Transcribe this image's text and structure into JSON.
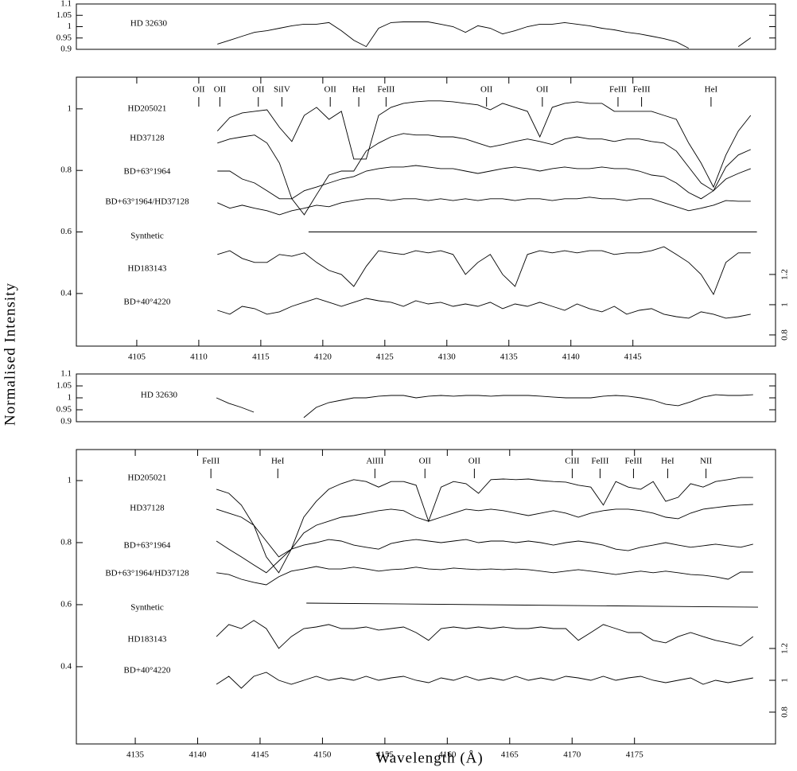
{
  "chart_data": [
    {
      "type": "line",
      "xlim": [
        4100.13,
        4156.5
      ],
      "ylim": [
        0.9,
        1.1
      ],
      "yticks": [
        0.9,
        0.95,
        1,
        1.05,
        1.1
      ],
      "x": [
        4111.5,
        4112.5,
        4113.5,
        4114.5,
        4115.5,
        4116.5,
        4117.5,
        4118.5,
        4119.5,
        4120.5,
        4121.5,
        4122.5,
        4123.5,
        4124.5,
        4125.5,
        4126.5,
        4127.5,
        4128.5,
        4129.5,
        4130.5,
        4131.5,
        4132.5,
        4133.5,
        4134.5,
        4135.5,
        4136.5,
        4137.5,
        4138.5,
        4139.5,
        4140.5,
        4141.5,
        4142.5,
        4143.5,
        4144.5,
        4145.5,
        4146.5,
        4147.5,
        4148.5,
        4149.5,
        4150.5,
        4151.5,
        4152.5,
        4153.5,
        4154.5
      ],
      "series": [
        {
          "name": "HD 32630",
          "color": "#000000",
          "values": [
            0.923,
            0.94,
            0.958,
            0.975,
            0.982,
            0.993,
            1.004,
            1.011,
            1.011,
            1.018,
            0.982,
            0.94,
            0.912,
            0.993,
            1.018,
            1.021,
            1.021,
            1.021,
            1.011,
            1.0,
            0.975,
            1.004,
            0.993,
            0.968,
            0.982,
            1.0,
            1.011,
            1.011,
            1.018,
            1.011,
            1.004,
            0.993,
            0.986,
            0.975,
            0.968,
            0.958,
            0.947,
            0.933,
            0.905,
            null,
            null,
            null,
            0.912,
            0.951
          ]
        }
      ]
    },
    {
      "type": "line",
      "y_label": "Normalised Intensity",
      "xlim": [
        4100.13,
        4156.5
      ],
      "ylim": [
        0.229,
        1.103
      ],
      "yticks": [
        0.4,
        0.6,
        0.8,
        1
      ],
      "y2lim": [
        0.726,
        2.505
      ],
      "y2ticks": [
        0.8,
        1,
        1.2
      ],
      "xticks": [
        4105,
        4110,
        4115,
        4120,
        4125,
        4130,
        4135,
        4140,
        4145
      ],
      "x": [
        4111.5,
        4112.5,
        4113.5,
        4114.5,
        4115.5,
        4116.5,
        4117.5,
        4118.5,
        4119.5,
        4120.5,
        4121.5,
        4122.5,
        4123.5,
        4124.5,
        4125.5,
        4126.5,
        4127.5,
        4128.5,
        4129.5,
        4130.5,
        4131.5,
        4132.5,
        4133.5,
        4134.5,
        4135.5,
        4136.5,
        4137.5,
        4138.5,
        4139.5,
        4140.5,
        4141.5,
        4142.5,
        4143.5,
        4144.5,
        4145.5,
        4146.5,
        4147.5,
        4148.5,
        4149.5,
        4150.5,
        4151.5,
        4152.5,
        4153.5,
        4154.5
      ],
      "series": [
        {
          "name": "HD205021",
          "color": "#000000",
          "values": [
            0.928,
            0.972,
            0.987,
            0.992,
            0.997,
            0.94,
            0.894,
            0.979,
            1.005,
            0.966,
            0.992,
            0.837,
            0.837,
            0.979,
            1.005,
            1.018,
            1.023,
            1.026,
            1.026,
            1.023,
            1.018,
            1.013,
            0.997,
            1.018,
            1.005,
            0.992,
            0.909,
            1.005,
            1.018,
            1.023,
            1.018,
            1.018,
            0.992,
            0.992,
            0.992,
            0.992,
            0.979,
            0.966,
            0.889,
            0.824,
            0.746,
            0.85,
            0.928,
            0.979
          ]
        },
        {
          "name": "HD37128",
          "color": "#000000",
          "values": [
            0.889,
            0.902,
            0.909,
            0.915,
            0.889,
            0.824,
            0.708,
            0.656,
            0.721,
            0.785,
            0.798,
            0.798,
            0.863,
            0.889,
            0.909,
            0.92,
            0.915,
            0.915,
            0.909,
            0.909,
            0.902,
            0.889,
            0.876,
            0.884,
            0.894,
            0.902,
            0.894,
            0.884,
            0.902,
            0.909,
            0.902,
            0.902,
            0.894,
            0.902,
            0.902,
            0.894,
            0.889,
            0.863,
            0.811,
            0.759,
            0.734,
            0.811,
            0.85,
            0.868
          ]
        },
        {
          "name": "BD+63°1964",
          "color": "#000000",
          "values": [
            0.798,
            0.798,
            0.772,
            0.759,
            0.734,
            0.708,
            0.708,
            0.734,
            0.746,
            0.759,
            0.772,
            0.78,
            0.798,
            0.806,
            0.811,
            0.811,
            0.816,
            0.811,
            0.806,
            0.806,
            0.798,
            0.79,
            0.798,
            0.806,
            0.811,
            0.806,
            0.798,
            0.806,
            0.811,
            0.806,
            0.806,
            0.811,
            0.806,
            0.806,
            0.798,
            0.785,
            0.78,
            0.759,
            0.728,
            0.708,
            0.734,
            0.772,
            0.79,
            0.806
          ]
        },
        {
          "name": "BD+63°1964/HD37128",
          "color": "#000000",
          "values": [
            0.695,
            0.677,
            0.687,
            0.677,
            0.669,
            0.656,
            0.669,
            0.677,
            0.687,
            0.682,
            0.695,
            0.702,
            0.708,
            0.708,
            0.702,
            0.708,
            0.708,
            0.702,
            0.708,
            0.702,
            0.708,
            0.702,
            0.708,
            0.708,
            0.702,
            0.708,
            0.708,
            0.702,
            0.708,
            0.708,
            0.713,
            0.708,
            0.708,
            0.702,
            0.708,
            0.708,
            0.695,
            0.682,
            0.669,
            0.677,
            0.687,
            0.702,
            0.7,
            0.7
          ]
        },
        {
          "name": "Synthetic",
          "color": "#000000",
          "x": [
            4118.85,
            4155.0
          ],
          "values": [
            0.6,
            0.6
          ]
        },
        {
          "name": "HD183143",
          "color": "#000000",
          "values": [
            0.527,
            0.539,
            0.514,
            0.501,
            0.501,
            0.527,
            0.521,
            0.532,
            0.501,
            0.475,
            0.462,
            0.423,
            0.488,
            0.539,
            0.532,
            0.527,
            0.539,
            0.532,
            0.539,
            0.527,
            0.462,
            0.501,
            0.527,
            0.462,
            0.423,
            0.527,
            0.539,
            0.532,
            0.539,
            0.532,
            0.539,
            0.539,
            0.527,
            0.532,
            0.532,
            0.539,
            0.552,
            0.527,
            0.501,
            0.462,
            0.397,
            0.501,
            0.532,
            0.532
          ]
        },
        {
          "name": "BD+40°4220",
          "color": "#000000",
          "axis": "y2",
          "values": [
            0.963,
            0.937,
            0.989,
            0.974,
            0.937,
            0.953,
            0.989,
            1.016,
            1.042,
            1.016,
            0.989,
            1.016,
            1.042,
            1.026,
            1.016,
            0.989,
            1.026,
            1.005,
            1.016,
            0.989,
            1.005,
            0.989,
            1.016,
            0.974,
            1.005,
            0.989,
            1.016,
            0.989,
            0.963,
            1.005,
            0.974,
            0.953,
            0.989,
            0.937,
            0.963,
            0.974,
            0.937,
            0.921,
            0.911,
            0.953,
            0.937,
            0.911,
            0.921,
            0.937
          ]
        }
      ],
      "annotations": [
        {
          "text": "OII",
          "x": 4110.0
        },
        {
          "text": "OII",
          "x": 4111.7
        },
        {
          "text": "OII",
          "x": 4114.8
        },
        {
          "text": "SiIV",
          "x": 4116.7
        },
        {
          "text": "OII",
          "x": 4120.6
        },
        {
          "text": "HeI",
          "x": 4122.9
        },
        {
          "text": "FeIII",
          "x": 4125.1
        },
        {
          "text": "OII",
          "x": 4133.2
        },
        {
          "text": "OII",
          "x": 4137.7
        },
        {
          "text": "FeIII",
          "x": 4143.8
        },
        {
          "text": "FeIII",
          "x": 4145.7
        },
        {
          "text": "HeI",
          "x": 4151.3
        }
      ]
    },
    {
      "type": "line",
      "xlim": [
        4130.28,
        4186.3
      ],
      "ylim": [
        0.9,
        1.1
      ],
      "yticks": [
        0.9,
        0.95,
        1,
        1.05,
        1.1
      ],
      "x": [
        4141.5,
        4142.5,
        4143.5,
        4144.5,
        4145.5,
        4146.5,
        4147.5,
        4148.5,
        4149.5,
        4150.5,
        4151.5,
        4152.5,
        4153.5,
        4154.5,
        4155.5,
        4156.5,
        4157.5,
        4158.5,
        4159.5,
        4160.5,
        4161.5,
        4162.5,
        4163.5,
        4164.5,
        4165.5,
        4166.5,
        4167.5,
        4168.5,
        4169.5,
        4170.5,
        4171.5,
        4172.5,
        4173.5,
        4174.5,
        4175.5,
        4176.5,
        4177.5,
        4178.5,
        4179.5,
        4180.5,
        4181.5,
        4182.5,
        4183.5,
        4184.5
      ],
      "series": [
        {
          "name": "HD 32630",
          "color": "#000000",
          "values": [
            1.0,
            0.977,
            0.96,
            0.94,
            null,
            null,
            null,
            0.917,
            0.96,
            0.98,
            0.99,
            1.0,
            1.0,
            1.007,
            1.01,
            1.01,
            1.0,
            1.007,
            1.01,
            1.007,
            1.01,
            1.01,
            1.007,
            1.01,
            1.01,
            1.01,
            1.007,
            1.003,
            1.0,
            1.0,
            1.0,
            1.007,
            1.01,
            1.007,
            1.0,
            0.99,
            0.973,
            0.967,
            0.983,
            1.003,
            1.013,
            1.01,
            1.01,
            1.013
          ]
        }
      ]
    },
    {
      "type": "line",
      "x_label": "Wavelength (Å)",
      "xlim": [
        4130.28,
        4186.3
      ],
      "ylim": [
        0.151,
        1.1
      ],
      "yticks": [
        0.4,
        0.6,
        0.8,
        1
      ],
      "y2lim": [
        0.6,
        2.45
      ],
      "y2ticks": [
        0.8,
        1,
        1.2
      ],
      "xticks": [
        4135,
        4140,
        4145,
        4150,
        4155,
        4160,
        4165,
        4170,
        4175
      ],
      "x": [
        4141.5,
        4142.5,
        4143.5,
        4144.5,
        4145.5,
        4146.5,
        4147.5,
        4148.5,
        4149.5,
        4150.5,
        4151.5,
        4152.5,
        4153.5,
        4154.5,
        4155.5,
        4156.5,
        4157.5,
        4158.5,
        4159.5,
        4160.5,
        4161.5,
        4162.5,
        4163.5,
        4164.5,
        4165.5,
        4166.5,
        4167.5,
        4168.5,
        4169.5,
        4170.5,
        4171.5,
        4172.5,
        4173.5,
        4174.5,
        4175.5,
        4176.5,
        4177.5,
        4178.5,
        4179.5,
        4180.5,
        4181.5,
        4182.5,
        4183.5,
        4184.5
      ],
      "series": [
        {
          "name": "HD205021",
          "color": "#000000",
          "values": [
            0.972,
            0.959,
            0.921,
            0.856,
            0.754,
            0.703,
            0.779,
            0.882,
            0.933,
            0.972,
            0.99,
            1.003,
            0.997,
            0.979,
            0.997,
            0.997,
            0.985,
            0.869,
            0.979,
            0.997,
            0.99,
            0.959,
            1.003,
            1.005,
            1.003,
            1.005,
            1.0,
            0.997,
            0.995,
            0.985,
            0.979,
            0.921,
            0.997,
            0.979,
            0.972,
            0.997,
            0.933,
            0.946,
            0.99,
            0.979,
            0.997,
            1.003,
            1.01,
            1.01
          ]
        },
        {
          "name": "HD37128",
          "color": "#000000",
          "values": [
            0.908,
            0.895,
            0.882,
            0.856,
            0.805,
            0.754,
            0.779,
            0.831,
            0.856,
            0.869,
            0.882,
            0.887,
            0.895,
            0.903,
            0.908,
            0.903,
            0.882,
            0.869,
            0.882,
            0.895,
            0.908,
            0.903,
            0.908,
            0.903,
            0.895,
            0.887,
            0.895,
            0.903,
            0.895,
            0.882,
            0.895,
            0.903,
            0.908,
            0.908,
            0.903,
            0.895,
            0.882,
            0.877,
            0.895,
            0.908,
            0.913,
            0.918,
            0.921,
            0.923
          ]
        },
        {
          "name": "BD+63°1964",
          "color": "#000000",
          "values": [
            0.805,
            0.779,
            0.754,
            0.728,
            0.703,
            0.741,
            0.779,
            0.792,
            0.8,
            0.81,
            0.805,
            0.792,
            0.785,
            0.779,
            0.797,
            0.805,
            0.81,
            0.805,
            0.8,
            0.805,
            0.81,
            0.8,
            0.805,
            0.805,
            0.8,
            0.805,
            0.8,
            0.792,
            0.8,
            0.805,
            0.8,
            0.792,
            0.779,
            0.774,
            0.785,
            0.792,
            0.8,
            0.792,
            0.785,
            0.79,
            0.795,
            0.79,
            0.785,
            0.795
          ]
        },
        {
          "name": "BD+63°1964/HD37128",
          "color": "#000000",
          "values": [
            0.703,
            0.697,
            0.682,
            0.672,
            0.664,
            0.69,
            0.708,
            0.715,
            0.723,
            0.715,
            0.715,
            0.721,
            0.715,
            0.708,
            0.713,
            0.715,
            0.721,
            0.715,
            0.713,
            0.718,
            0.715,
            0.713,
            0.715,
            0.713,
            0.715,
            0.713,
            0.708,
            0.703,
            0.708,
            0.713,
            0.708,
            0.703,
            0.697,
            0.703,
            0.708,
            0.703,
            0.708,
            0.703,
            0.697,
            0.695,
            0.69,
            0.682,
            0.705,
            0.705
          ]
        },
        {
          "name": "Synthetic",
          "color": "#000000",
          "x": [
            4148.71,
            4184.9
          ],
          "values": [
            0.605,
            0.592
          ]
        },
        {
          "name": "HD183143",
          "color": "#000000",
          "values": [
            0.497,
            0.536,
            0.523,
            0.549,
            0.523,
            0.459,
            0.497,
            0.523,
            0.528,
            0.536,
            0.523,
            0.523,
            0.528,
            0.518,
            0.523,
            0.528,
            0.51,
            0.485,
            0.523,
            0.528,
            0.523,
            0.528,
            0.523,
            0.528,
            0.523,
            0.523,
            0.528,
            0.523,
            0.523,
            0.485,
            0.51,
            0.536,
            0.523,
            0.51,
            0.51,
            0.485,
            0.477,
            0.497,
            0.51,
            0.497,
            0.485,
            0.477,
            0.467,
            0.497
          ]
        },
        {
          "name": "BD+40°4220",
          "color": "#000000",
          "axis": "y2",
          "values": [
            0.975,
            1.025,
            0.95,
            1.025,
            1.05,
            1.0,
            0.975,
            1.0,
            1.025,
            1.0,
            1.015,
            1.0,
            1.025,
            1.0,
            1.015,
            1.025,
            1.0,
            0.985,
            1.015,
            1.0,
            1.025,
            1.0,
            1.015,
            1.0,
            1.025,
            1.0,
            1.015,
            1.0,
            1.025,
            1.015,
            1.0,
            1.025,
            1.0,
            1.015,
            1.025,
            1.0,
            0.985,
            1.0,
            1.015,
            0.975,
            1.0,
            0.985,
            1.0,
            1.015
          ]
        }
      ],
      "annotations": [
        {
          "text": "FeIII",
          "x": 4141.06
        },
        {
          "text": "HeI",
          "x": 4146.42
        },
        {
          "text": "AlIII",
          "x": 4154.2
        },
        {
          "text": "OII",
          "x": 4158.21
        },
        {
          "text": "OII",
          "x": 4162.17
        },
        {
          "text": "CIII",
          "x": 4170.01
        },
        {
          "text": "FeIII",
          "x": 4172.24
        },
        {
          "text": "FeIII",
          "x": 4174.92
        },
        {
          "text": "HeI",
          "x": 4177.66
        },
        {
          "text": "NII",
          "x": 4180.73
        }
      ]
    }
  ]
}
